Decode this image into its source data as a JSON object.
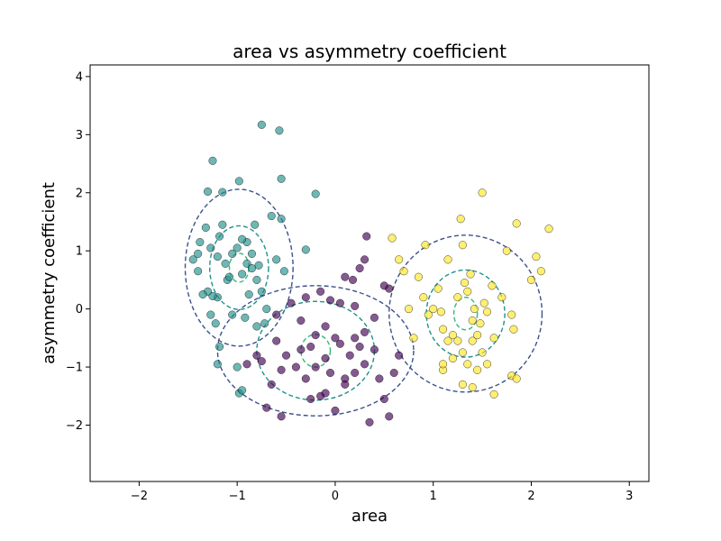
{
  "chart_data": {
    "type": "scatter",
    "title": "area vs asymmetry coefficient",
    "xlabel": "area",
    "ylabel": "asymmetry coefficient",
    "xlim": [
      -2.5,
      3.2
    ],
    "ylim": [
      -2.97,
      4.2
    ],
    "xticks": [
      -2,
      -1,
      0,
      1,
      2,
      3
    ],
    "yticks": [
      -2,
      -1,
      0,
      1,
      2,
      3,
      4
    ],
    "tick_labels_x": [
      "−2",
      "−1",
      "0",
      "1",
      "2",
      "3"
    ],
    "tick_labels_y": [
      "−2",
      "−1",
      "0",
      "1",
      "2",
      "3",
      "4"
    ],
    "grid": false,
    "legend": "none",
    "series": [
      {
        "color": "#440154",
        "points": [
          [
            -0.35,
            -0.7
          ],
          [
            -0.6,
            -0.55
          ],
          [
            -0.5,
            -0.8
          ],
          [
            -0.2,
            -1.0
          ],
          [
            0.1,
            -1.2
          ],
          [
            -0.1,
            -0.3
          ],
          [
            0.3,
            -0.4
          ],
          [
            0.2,
            -1.1
          ],
          [
            -0.3,
            -1.2
          ],
          [
            0.5,
            -1.55
          ],
          [
            0.0,
            -1.75
          ],
          [
            -0.15,
            -1.5
          ],
          [
            0.35,
            -1.95
          ],
          [
            0.55,
            -1.85
          ],
          [
            -0.75,
            -0.9
          ],
          [
            -0.65,
            -1.3
          ],
          [
            -0.4,
            -1.0
          ],
          [
            -0.7,
            -1.7
          ],
          [
            -0.55,
            -1.85
          ],
          [
            0.2,
            -0.5
          ],
          [
            0.4,
            -0.15
          ],
          [
            0.25,
            0.7
          ],
          [
            0.3,
            0.85
          ],
          [
            0.1,
            0.55
          ],
          [
            0.18,
            0.5
          ],
          [
            -0.3,
            0.2
          ],
          [
            -0.15,
            0.3
          ],
          [
            -0.05,
            0.15
          ],
          [
            0.05,
            0.1
          ],
          [
            -0.45,
            0.1
          ],
          [
            -0.6,
            -0.1
          ],
          [
            0.0,
            -0.5
          ],
          [
            0.15,
            -0.8
          ],
          [
            -0.2,
            -0.45
          ],
          [
            -0.1,
            -0.85
          ],
          [
            0.3,
            -0.95
          ],
          [
            0.45,
            -1.2
          ],
          [
            0.6,
            -1.1
          ],
          [
            0.65,
            -0.8
          ],
          [
            -0.8,
            -0.8
          ],
          [
            -0.9,
            -0.95
          ],
          [
            -0.25,
            -0.65
          ],
          [
            0.05,
            -0.6
          ],
          [
            -0.25,
            -1.55
          ],
          [
            -0.1,
            -1.45
          ],
          [
            0.1,
            -1.3
          ],
          [
            0.5,
            0.4
          ],
          [
            0.55,
            0.35
          ],
          [
            0.32,
            1.25
          ],
          [
            -0.35,
            -0.2
          ],
          [
            0.2,
            0.05
          ],
          [
            -0.55,
            -1.05
          ],
          [
            0.25,
            -0.65
          ],
          [
            -0.05,
            -1.1
          ],
          [
            0.4,
            -0.7
          ]
        ]
      },
      {
        "color": "#21918c",
        "points": [
          [
            -1.45,
            0.85
          ],
          [
            -1.4,
            0.65
          ],
          [
            -1.38,
            1.15
          ],
          [
            -1.3,
            2.02
          ],
          [
            -1.27,
            1.05
          ],
          [
            -1.25,
            2.55
          ],
          [
            -1.2,
            0.9
          ],
          [
            -1.18,
            1.25
          ],
          [
            -1.15,
            1.45
          ],
          [
            -1.1,
            0.5
          ],
          [
            -1.05,
            0.95
          ],
          [
            -1.0,
            1.05
          ],
          [
            -0.95,
            0.6
          ],
          [
            -0.9,
            1.15
          ],
          [
            -0.88,
            0.25
          ],
          [
            -0.85,
            0.95
          ],
          [
            -0.82,
            1.45
          ],
          [
            -0.78,
            0.75
          ],
          [
            -0.75,
            0.3
          ],
          [
            -0.72,
            -0.25
          ],
          [
            -0.7,
            0.0
          ],
          [
            -0.65,
            1.6
          ],
          [
            -0.6,
            0.85
          ],
          [
            -0.55,
            1.55
          ],
          [
            -0.52,
            0.65
          ],
          [
            -0.75,
            3.17
          ],
          [
            -0.57,
            3.07
          ],
          [
            -0.55,
            2.24
          ],
          [
            -0.2,
            1.98
          ],
          [
            -0.3,
            1.02
          ],
          [
            -1.15,
            2.01
          ],
          [
            -0.98,
            2.2
          ],
          [
            -1.2,
            0.2
          ],
          [
            -1.25,
            0.22
          ],
          [
            -1.3,
            0.3
          ],
          [
            -1.27,
            -0.1
          ],
          [
            -1.22,
            -0.25
          ],
          [
            -1.18,
            -0.65
          ],
          [
            -1.05,
            -0.1
          ],
          [
            -0.92,
            -0.15
          ],
          [
            -0.8,
            -0.3
          ],
          [
            -1.2,
            -0.95
          ],
          [
            -1.0,
            -1.0
          ],
          [
            -0.98,
            -1.45
          ],
          [
            -0.95,
            -1.4
          ],
          [
            -0.9,
            0.78
          ],
          [
            -0.85,
            0.7
          ],
          [
            -0.8,
            0.5
          ],
          [
            -1.35,
            0.25
          ],
          [
            -1.4,
            0.95
          ],
          [
            -1.32,
            1.4
          ],
          [
            -0.95,
            1.2
          ],
          [
            -1.12,
            0.78
          ],
          [
            -1.08,
            0.55
          ]
        ]
      },
      {
        "color": "#fde725",
        "points": [
          [
            0.58,
            1.22
          ],
          [
            0.65,
            0.85
          ],
          [
            0.7,
            0.65
          ],
          [
            0.75,
            0.0
          ],
          [
            0.8,
            -0.5
          ],
          [
            0.85,
            0.55
          ],
          [
            0.9,
            0.2
          ],
          [
            0.92,
            1.1
          ],
          [
            0.95,
            -0.1
          ],
          [
            1.0,
            0.0
          ],
          [
            1.05,
            0.35
          ],
          [
            1.08,
            -0.05
          ],
          [
            1.1,
            -0.35
          ],
          [
            1.15,
            0.85
          ],
          [
            1.2,
            -0.45
          ],
          [
            1.25,
            0.2
          ],
          [
            1.28,
            1.55
          ],
          [
            1.3,
            1.1
          ],
          [
            1.32,
            0.45
          ],
          [
            1.35,
            0.3
          ],
          [
            1.38,
            0.6
          ],
          [
            1.4,
            -0.2
          ],
          [
            1.42,
            0.0
          ],
          [
            1.45,
            -0.45
          ],
          [
            1.48,
            -0.25
          ],
          [
            1.5,
            2.0
          ],
          [
            1.52,
            0.1
          ],
          [
            1.55,
            -0.05
          ],
          [
            1.6,
            0.4
          ],
          [
            1.62,
            -0.5
          ],
          [
            1.7,
            0.2
          ],
          [
            1.75,
            1.0
          ],
          [
            1.8,
            -0.1
          ],
          [
            1.82,
            -0.35
          ],
          [
            1.85,
            1.47
          ],
          [
            2.0,
            0.5
          ],
          [
            2.05,
            0.9
          ],
          [
            2.1,
            0.65
          ],
          [
            2.18,
            1.38
          ],
          [
            1.8,
            -1.15
          ],
          [
            1.85,
            -1.2
          ],
          [
            1.62,
            -1.47
          ],
          [
            1.4,
            -1.35
          ],
          [
            1.3,
            -1.3
          ],
          [
            1.1,
            -1.05
          ],
          [
            1.1,
            -0.95
          ],
          [
            1.2,
            -0.85
          ],
          [
            1.3,
            -0.75
          ],
          [
            1.35,
            -0.95
          ],
          [
            1.45,
            -1.05
          ],
          [
            1.5,
            -0.75
          ],
          [
            1.55,
            -0.95
          ],
          [
            1.25,
            -0.55
          ],
          [
            1.4,
            -0.55
          ],
          [
            1.15,
            -0.55
          ]
        ]
      }
    ],
    "ellipses": [
      {
        "cx": -0.2,
        "cy": -0.72,
        "rx": [
          0.15,
          0.6,
          1.0
        ],
        "ry": [
          0.28,
          0.85,
          1.12
        ],
        "color": "#440154"
      },
      {
        "cx": -0.98,
        "cy": 0.71,
        "rx": [
          0.1,
          0.3,
          0.55
        ],
        "ry": [
          0.25,
          0.72,
          1.35
        ],
        "color": "#21918c"
      },
      {
        "cx": 1.33,
        "cy": -0.08,
        "rx": [
          0.12,
          0.4,
          0.78
        ],
        "ry": [
          0.28,
          0.75,
          1.35
        ],
        "color": "#fde725"
      }
    ],
    "contour_colors": [
      "#35b779",
      "#21918c",
      "#3b528b"
    ]
  }
}
